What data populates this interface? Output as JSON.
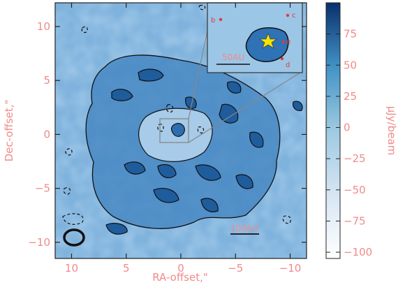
{
  "chart_data": {
    "type": "heatmap",
    "title": "",
    "xlabel": "RA-offset,\"",
    "ylabel": "Dec-offset,\"",
    "xlim": [
      11.5,
      -11.5
    ],
    "ylim": [
      -11.5,
      12.2
    ],
    "x_ticks": [
      10,
      5,
      0,
      -5,
      -10
    ],
    "x_tick_labels": [
      "10",
      "5",
      "0",
      "−5",
      "−10"
    ],
    "y_ticks": [
      10,
      5,
      0,
      -5,
      -10
    ],
    "y_tick_labels": [
      "10",
      "5",
      "0",
      "−5",
      "−10"
    ],
    "colorbar": {
      "label": "μJy/beam",
      "range": [
        -105,
        100
      ],
      "ticks": [
        75,
        50,
        25,
        0,
        -25,
        -50,
        -75,
        -100
      ],
      "tick_labels": [
        "75",
        "50",
        "25",
        "0",
        "−25",
        "−50",
        "−75",
        "−100"
      ],
      "colors": [
        "#ffffff",
        "#d6e5f4",
        "#9ecae1",
        "#4292c6",
        "#08306b"
      ]
    },
    "star": {
      "x": 0.3,
      "y": 0.1,
      "color": "#f5e400"
    },
    "beam": {
      "x": 9.8,
      "y": -9.9,
      "major": 1.8,
      "minor": 1.4
    },
    "scale_bar_label": "100AU",
    "inset": {
      "scale_bar_label": "50AU",
      "labels": [
        "b",
        "c",
        "e",
        "d"
      ]
    },
    "contour_levels": "positive (solid) and negative (dashed) emission contours"
  }
}
